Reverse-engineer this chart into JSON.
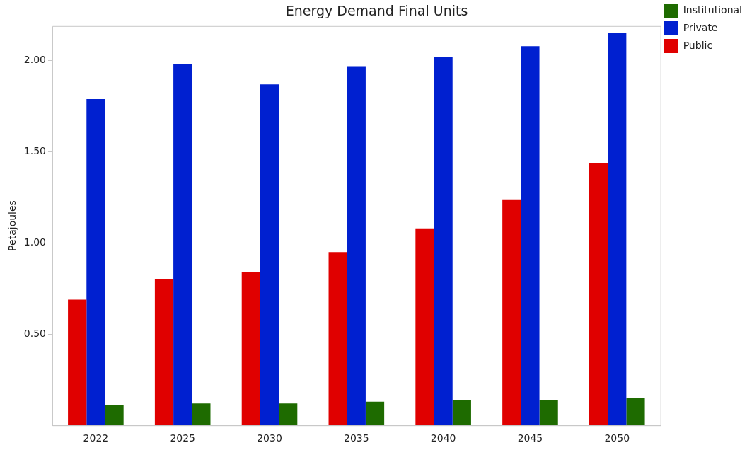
{
  "chart_data": {
    "type": "bar",
    "title": "Energy Demand Final Units",
    "ylabel": "Petajoules",
    "categories": [
      "2022",
      "2025",
      "2030",
      "2035",
      "2040",
      "2045",
      "2050"
    ],
    "series": [
      {
        "name": "Public",
        "color": "#e00000",
        "values": [
          0.69,
          0.8,
          0.84,
          0.95,
          1.08,
          1.24,
          1.44
        ]
      },
      {
        "name": "Private",
        "color": "#0020d0",
        "values": [
          1.79,
          1.98,
          1.87,
          1.97,
          2.02,
          2.08,
          2.15
        ]
      },
      {
        "name": "Institutional",
        "color": "#1e6b00",
        "values": [
          0.11,
          0.12,
          0.12,
          0.13,
          0.14,
          0.14,
          0.15
        ]
      }
    ],
    "ylim": [
      0,
      2.19
    ],
    "yticks": [
      {
        "value": 0.5,
        "label": "0.50"
      },
      {
        "value": 1,
        "label": "1.00"
      },
      {
        "value": 1.5,
        "label": "1.50"
      },
      {
        "value": 2,
        "label": "2.00"
      }
    ],
    "grid": false,
    "legend": "top right"
  }
}
